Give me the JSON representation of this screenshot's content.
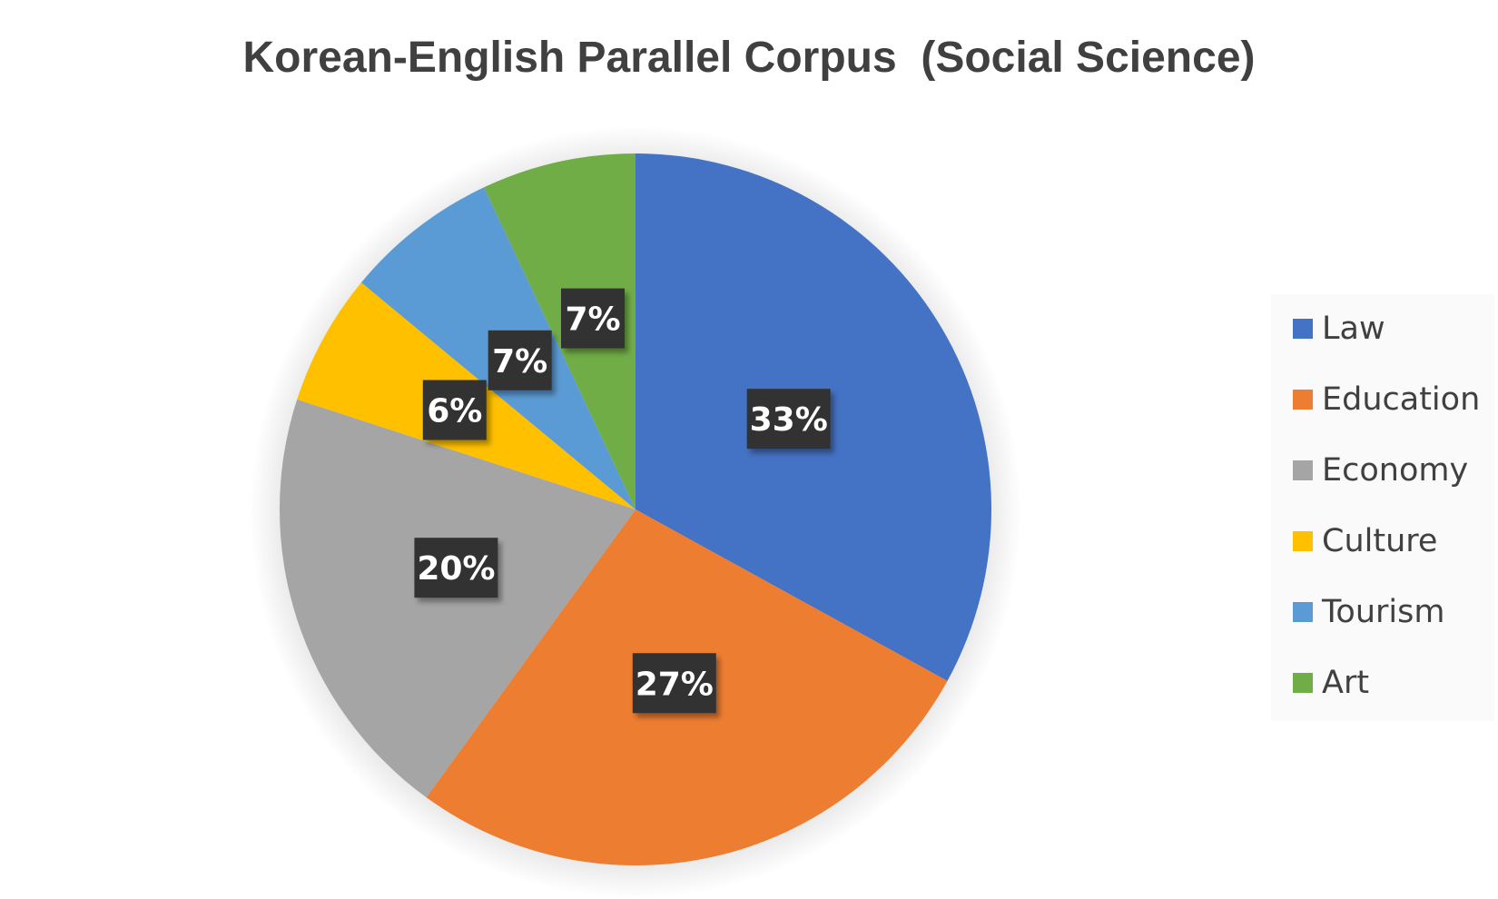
{
  "chart_data": {
    "type": "pie",
    "title": "Korean-English Parallel Corpus  (Social Science)",
    "categories": [
      "Law",
      "Education",
      "Economy",
      "Culture",
      "Tourism",
      "Art"
    ],
    "values": [
      33,
      27,
      20,
      6,
      7,
      7
    ],
    "data_labels": [
      "33%",
      "27%",
      "20%",
      "6%",
      "7%",
      "7%"
    ],
    "colors": [
      "#4472C4",
      "#ED7D31",
      "#A5A5A5",
      "#FFC000",
      "#5B9BD5",
      "#70AD47"
    ],
    "direction": "clockwise from top",
    "legend_position": "right"
  }
}
